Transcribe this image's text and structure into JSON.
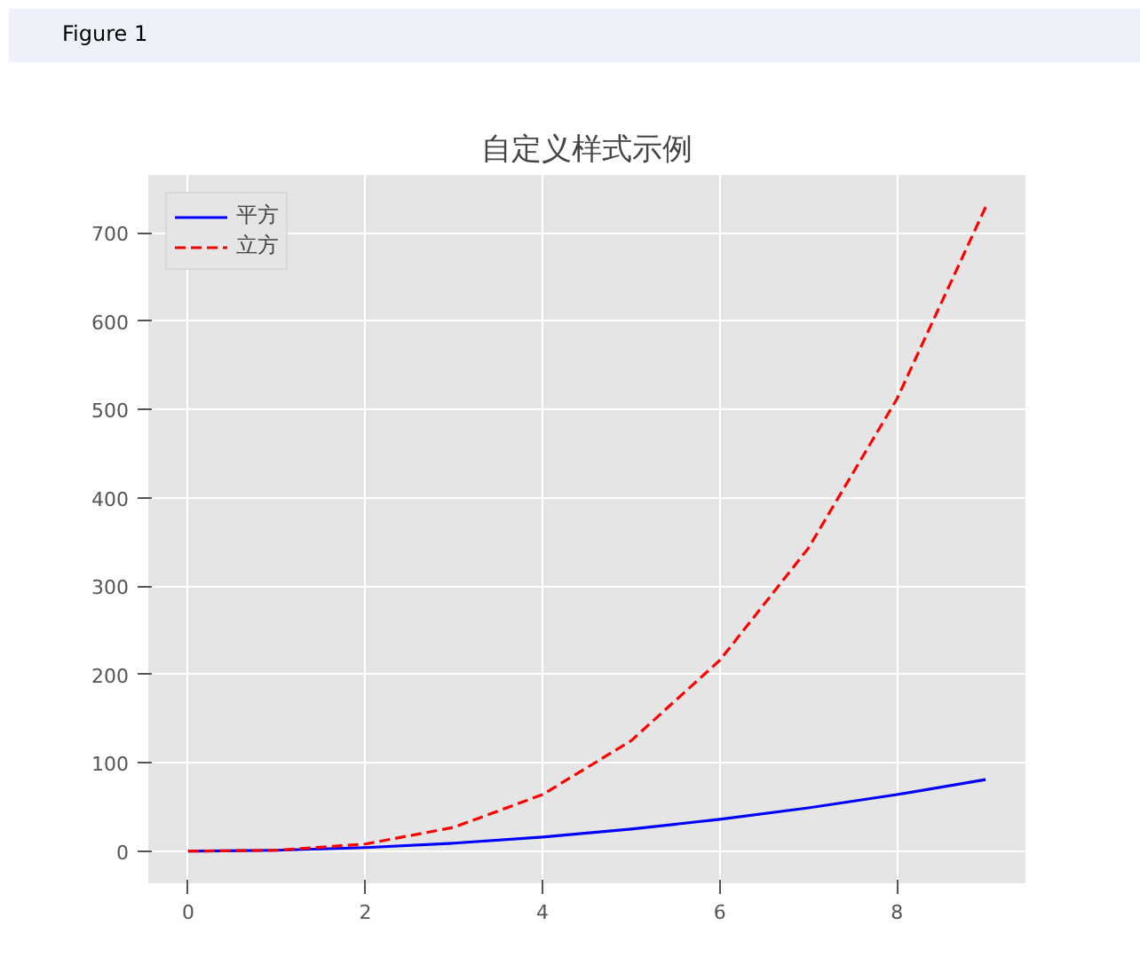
{
  "chart_data": {
    "type": "line",
    "title": "自定义样式示例",
    "annotations": [
      "Figure 1"
    ],
    "x": [
      0,
      1,
      2,
      3,
      4,
      5,
      6,
      7,
      8,
      9
    ],
    "series": [
      {
        "name": "平方",
        "color": "#0000ff",
        "line_style": "solid",
        "values": [
          0,
          1,
          4,
          9,
          16,
          25,
          36,
          49,
          64,
          81
        ]
      },
      {
        "name": "立方",
        "color": "#ff0000",
        "line_style": "dashed",
        "values": [
          0,
          1,
          8,
          27,
          64,
          125,
          216,
          343,
          512,
          729
        ]
      }
    ],
    "xlim": [
      -0.45,
      9.45
    ],
    "ylim": [
      -36.45,
      765.45
    ],
    "xticks": [
      0,
      2,
      4,
      6,
      8
    ],
    "yticks": [
      0,
      100,
      200,
      300,
      400,
      500,
      600,
      700
    ],
    "grid": true,
    "legend": "top left",
    "marker": "none"
  }
}
